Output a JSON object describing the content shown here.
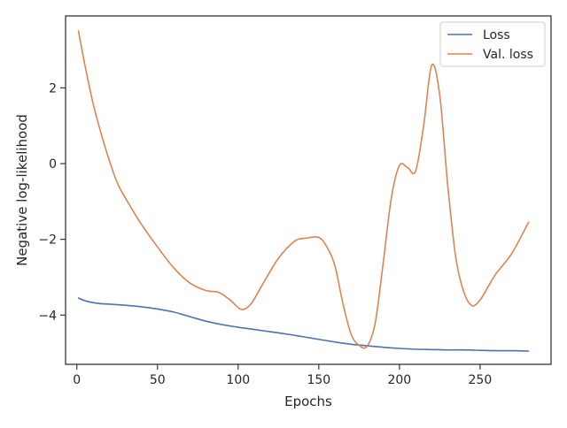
{
  "chart_data": {
    "type": "line",
    "title": "",
    "xlabel": "Epochs",
    "ylabel": "Negative log-likelihood",
    "xlim": [
      -7,
      294
    ],
    "ylim": [
      -5.3,
      3.9
    ],
    "xticks": [
      0,
      50,
      100,
      150,
      200,
      250
    ],
    "yticks": [
      -4,
      -2,
      0,
      2
    ],
    "grid": false,
    "legend_position": "top-right",
    "series": [
      {
        "name": "Loss",
        "color": "#4c72b0",
        "x": [
          1,
          5,
          10,
          15,
          20,
          30,
          40,
          50,
          60,
          70,
          80,
          90,
          100,
          110,
          120,
          130,
          140,
          150,
          160,
          170,
          180,
          190,
          200,
          210,
          220,
          230,
          240,
          250,
          260,
          270,
          280
        ],
        "y": [
          -3.55,
          -3.62,
          -3.67,
          -3.7,
          -3.71,
          -3.74,
          -3.78,
          -3.84,
          -3.92,
          -4.04,
          -4.16,
          -4.25,
          -4.32,
          -4.38,
          -4.44,
          -4.5,
          -4.57,
          -4.64,
          -4.71,
          -4.77,
          -4.81,
          -4.85,
          -4.88,
          -4.9,
          -4.91,
          -4.92,
          -4.92,
          -4.93,
          -4.94,
          -4.94,
          -4.95
        ]
      },
      {
        "name": "Val. loss",
        "color": "#dd8452",
        "x": [
          1,
          5,
          10,
          15,
          20,
          25,
          30,
          40,
          50,
          60,
          70,
          80,
          88,
          95,
          102,
          108,
          115,
          125,
          135,
          142,
          150,
          155,
          160,
          165,
          170,
          175,
          180,
          185,
          190,
          195,
          200,
          205,
          210,
          215,
          220,
          225,
          230,
          235,
          240,
          245,
          250,
          255,
          260,
          270,
          280
        ],
        "y": [
          3.5,
          2.6,
          1.6,
          0.8,
          0.1,
          -0.5,
          -0.9,
          -1.6,
          -2.2,
          -2.75,
          -3.15,
          -3.35,
          -3.4,
          -3.6,
          -3.85,
          -3.7,
          -3.2,
          -2.5,
          -2.05,
          -1.97,
          -1.95,
          -2.2,
          -2.7,
          -3.7,
          -4.5,
          -4.8,
          -4.82,
          -4.2,
          -2.6,
          -0.9,
          -0.05,
          -0.1,
          -0.2,
          1.0,
          2.6,
          1.8,
          -0.6,
          -2.5,
          -3.4,
          -3.75,
          -3.6,
          -3.25,
          -2.9,
          -2.35,
          -1.55
        ]
      }
    ]
  }
}
